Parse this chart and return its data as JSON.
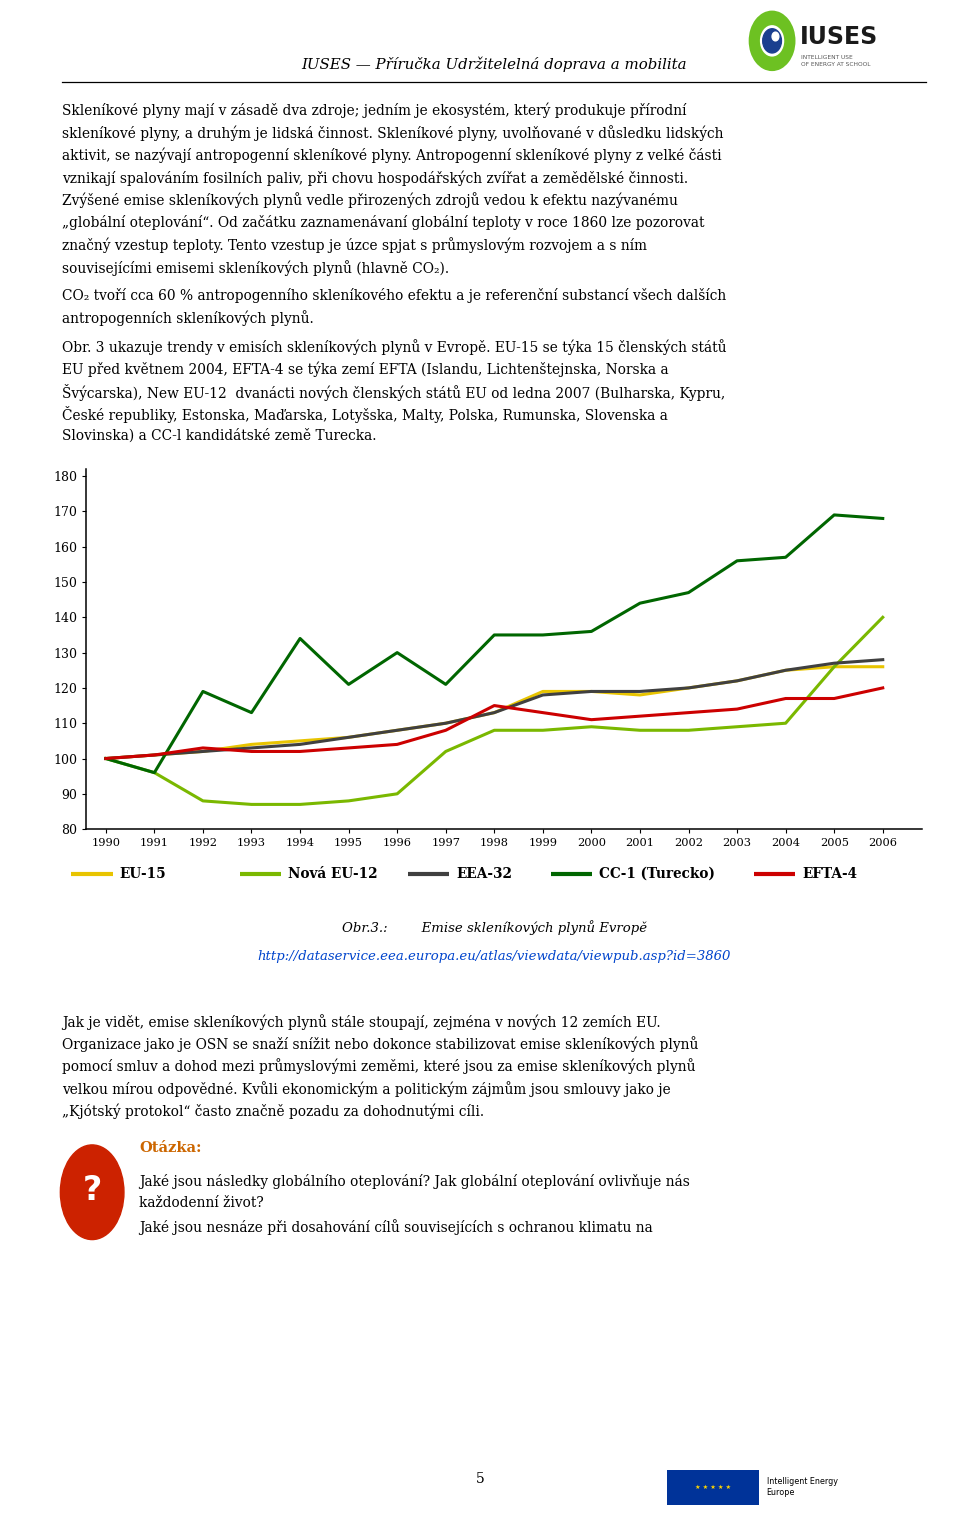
{
  "years": [
    1990,
    1991,
    1992,
    1993,
    1994,
    1995,
    1996,
    1997,
    1998,
    1999,
    2000,
    2001,
    2002,
    2003,
    2004,
    2005,
    2006
  ],
  "EU15": [
    100,
    101,
    102,
    104,
    105,
    106,
    108,
    110,
    113,
    119,
    119,
    118,
    120,
    122,
    125,
    126,
    126
  ],
  "NewEU12": [
    100,
    96,
    88,
    87,
    87,
    88,
    90,
    102,
    108,
    108,
    109,
    108,
    108,
    109,
    110,
    126,
    140
  ],
  "EEA32": [
    100,
    101,
    102,
    103,
    104,
    106,
    108,
    110,
    113,
    118,
    119,
    119,
    120,
    122,
    125,
    127,
    128
  ],
  "CC1": [
    100,
    96,
    119,
    113,
    134,
    121,
    130,
    121,
    135,
    135,
    136,
    144,
    147,
    156,
    157,
    169,
    168
  ],
  "EFTA4": [
    100,
    101,
    103,
    102,
    102,
    103,
    104,
    108,
    115,
    113,
    111,
    112,
    113,
    114,
    117,
    117,
    120
  ],
  "colors": {
    "EU15": "#E8C400",
    "NewEU12": "#7AB800",
    "EEA32": "#404040",
    "CC1": "#006600",
    "EFTA4": "#CC0000"
  },
  "ylim": [
    80,
    182
  ],
  "yticks": [
    80,
    90,
    100,
    110,
    120,
    130,
    140,
    150,
    160,
    170,
    180
  ],
  "header": "IUSES — Příručka Udržitelelná doprava a mobilita",
  "para1_line1": "Skleníkové plyny mají v zásadě dva zdroje; jedním je ekosystém, který produkuje přírodní",
  "para1_line2": "skleníkové plyny, a druhým je lidská činnost. Skleníkové plyny, uvolňované v důsledku lidských",
  "para1_line3": "aktivit, se nazývají antropogenní skleníkové plyny. Antropogenní skleníkové plyny z velké části",
  "para1_line4": "vznikají spalováním fosilních paliv, při chovu hospodářských zvířat a zemědělské činnosti.",
  "para1_line5": "Zvýšené emise skleníkových plynů vedle přirozených zdrojů vedou k efektu nazývanému",
  "para1_line6": "„globální oteplování“. Od začátku zaznamenávaní globální teploty v roce 1860 lze pozorovat",
  "para1_line7": "značný vzestup teploty. Tento vzestup je úzce spjat s průmyslovým rozvojem a s ním",
  "para1_line8": "souvisejícími emisemi skleníkových plynů (hlavně CO₂).",
  "para2_line1": "CO₂ tvoří cca 60 % antropogenního skleníkového efektu a je referenční substancí všech dalších",
  "para2_line2": "antropogenních skleníkových plynů.",
  "para3_line1": "Obr. 3 ukazuje trendy v emisích skleníkových plynů v Evropě. EU-15 se týka 15 členských států",
  "para3_line2": "EU před květnem 2004, EFTA-4 se týka zemí EFTA (Islandu, Lichtenštejnska, Norska a",
  "para3_line3": "Švýcarska), New EU-12  dvanácti nových členských států EU od ledna 2007 (Bulharska, Kypru,",
  "para3_line4": "České republiky, Estonska, Maďarska, Lotyšska, Malty, Polska, Rumunska, Slovenska a",
  "para3_line5": "Slovinska) a CC-l kandidátské země Turecka.",
  "caption_title": "Obr.3.:        Emise skleníkových plynů Evropě",
  "caption_url": "http://dataservice.eea.europa.eu/atlas/viewdata/viewpub.asp?id=3860",
  "para4_line1": "Jak je vidět, emise skleníkových plynů stále stoupají, zejména v nových 12 zemích EU.",
  "para4_line2": "Organizace jako je OSN se snaží snížit nebo dokonce stabilizovat emise skleníkových plynů",
  "para4_line3": "pomocí smluv a dohod mezi průmyslovými zeměmi, které jsou za emise skleníkových plynů",
  "para4_line4": "velkou mírou odpovědné. Kvůli ekonomickým a politickým zájmům jsou smlouvy jako je",
  "para4_line5": "„Kjótský protokol“ často značně pozadu za dohodnutými cíli.",
  "otazka_title": "Otázka:",
  "otazka_line1": "Jaké jsou následky globálního oteplování? Jak globální oteplování ovlivňuje nás",
  "otazka_line2": "každodenní život?",
  "otazka_line3": "Jaké jsou nesnáze při dosahování cílů souvisejících s ochranou klimatu na",
  "page_number": "5",
  "legend_items": [
    {
      "label": "EU-15",
      "color": "#E8C400"
    },
    {
      "label": "Nová EU-12",
      "color": "#7AB800"
    },
    {
      "label": "EEA-32",
      "color": "#404040"
    },
    {
      "label": "CC-1 (Turecko)",
      "color": "#006600"
    },
    {
      "label": "EFTA-4",
      "color": "#CC0000"
    }
  ],
  "line_width": 2.2,
  "background_color": "#ffffff"
}
